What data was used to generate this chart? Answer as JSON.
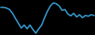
{
  "x": [
    0,
    1,
    2,
    3,
    4,
    5,
    6,
    7,
    8,
    9,
    10,
    11,
    12,
    13,
    14,
    15,
    16,
    17,
    18,
    19,
    20,
    21,
    22,
    23,
    24,
    25,
    26,
    27,
    28,
    29,
    30,
    31,
    32
  ],
  "y": [
    78,
    78,
    76,
    72,
    62,
    48,
    35,
    22,
    30,
    20,
    30,
    18,
    8,
    20,
    30,
    50,
    68,
    82,
    90,
    88,
    82,
    70,
    72,
    60,
    55,
    62,
    52,
    58,
    50,
    56,
    54,
    58,
    56
  ],
  "line_color": "#3399cc",
  "linewidth": 1.3,
  "background_color": "#000000"
}
